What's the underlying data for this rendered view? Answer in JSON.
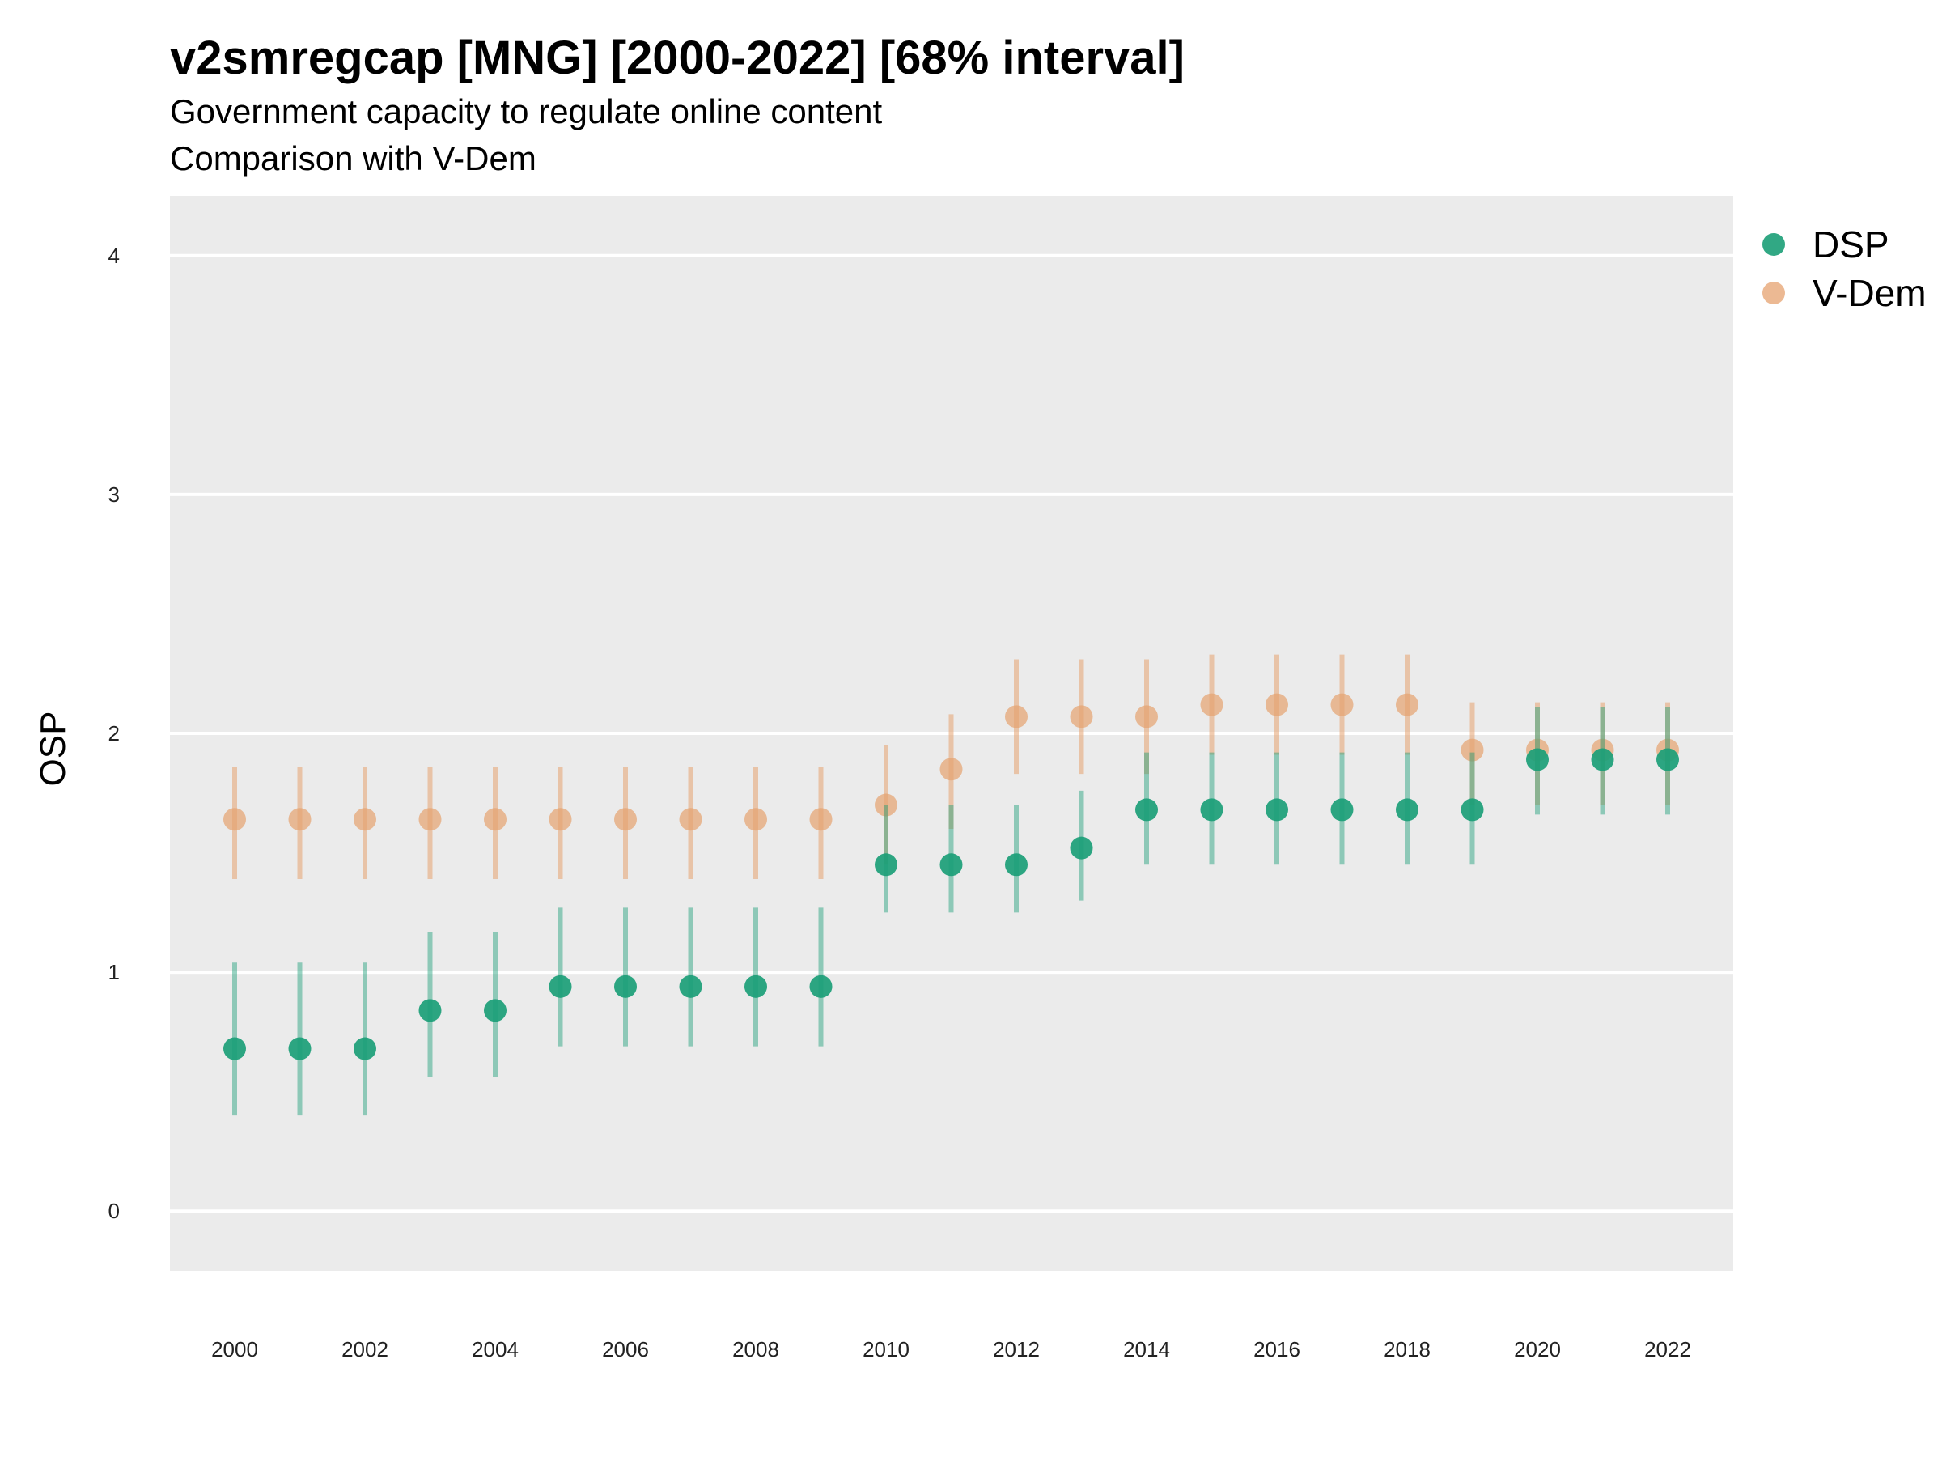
{
  "title": "v2smregcap [MNG] [2000-2022] [68% interval]",
  "subtitle_line1": "Government capacity to regulate online content",
  "subtitle_line2": "Comparison with V-Dem",
  "colors": {
    "dsp": "#1b9e77",
    "vdem": "#e6a26f",
    "panel": "#ebebeb",
    "grid": "#ffffff"
  },
  "chart_data": {
    "type": "scatter",
    "title": "v2smregcap [MNG] [2000-2022] [68% interval]",
    "ylabel": "OSP",
    "xlabel": "",
    "x": [
      2000,
      2001,
      2002,
      2003,
      2004,
      2005,
      2006,
      2007,
      2008,
      2009,
      2010,
      2011,
      2012,
      2013,
      2014,
      2015,
      2016,
      2017,
      2018,
      2019,
      2020,
      2021,
      2022
    ],
    "x_ticks": [
      "2000",
      "2002",
      "2004",
      "2006",
      "2008",
      "2010",
      "2012",
      "2014",
      "2016",
      "2018",
      "2020",
      "2022"
    ],
    "y_ticks": [
      "0",
      "1",
      "2",
      "3",
      "4"
    ],
    "ylim": [
      -0.25,
      4.25
    ],
    "grid": true,
    "legend_position": "top-right",
    "series": [
      {
        "name": "DSP",
        "values": [
          0.68,
          0.68,
          0.68,
          0.84,
          0.84,
          0.94,
          0.94,
          0.94,
          0.94,
          0.94,
          1.45,
          1.45,
          1.45,
          1.52,
          1.68,
          1.68,
          1.68,
          1.68,
          1.68,
          1.68,
          1.89,
          1.89,
          1.89
        ],
        "lower": [
          0.4,
          0.4,
          0.4,
          0.56,
          0.56,
          0.69,
          0.69,
          0.69,
          0.69,
          0.69,
          1.25,
          1.25,
          1.25,
          1.3,
          1.45,
          1.45,
          1.45,
          1.45,
          1.45,
          1.45,
          1.66,
          1.66,
          1.66
        ],
        "upper": [
          1.04,
          1.04,
          1.04,
          1.17,
          1.17,
          1.27,
          1.27,
          1.27,
          1.27,
          1.27,
          1.7,
          1.7,
          1.7,
          1.76,
          1.92,
          1.92,
          1.92,
          1.92,
          1.92,
          1.92,
          2.11,
          2.11,
          2.11
        ]
      },
      {
        "name": "V-Dem",
        "values": [
          1.64,
          1.64,
          1.64,
          1.64,
          1.64,
          1.64,
          1.64,
          1.64,
          1.64,
          1.64,
          1.7,
          1.85,
          2.07,
          2.07,
          2.07,
          2.12,
          2.12,
          2.12,
          2.12,
          1.93,
          1.93,
          1.93,
          1.93
        ],
        "lower": [
          1.39,
          1.39,
          1.39,
          1.39,
          1.39,
          1.39,
          1.39,
          1.39,
          1.39,
          1.39,
          1.45,
          1.6,
          1.83,
          1.83,
          1.83,
          1.91,
          1.91,
          1.91,
          1.91,
          1.7,
          1.7,
          1.7,
          1.7
        ],
        "upper": [
          1.86,
          1.86,
          1.86,
          1.86,
          1.86,
          1.86,
          1.86,
          1.86,
          1.86,
          1.86,
          1.95,
          2.08,
          2.31,
          2.31,
          2.31,
          2.33,
          2.33,
          2.33,
          2.33,
          2.13,
          2.13,
          2.13,
          2.13
        ]
      }
    ]
  }
}
